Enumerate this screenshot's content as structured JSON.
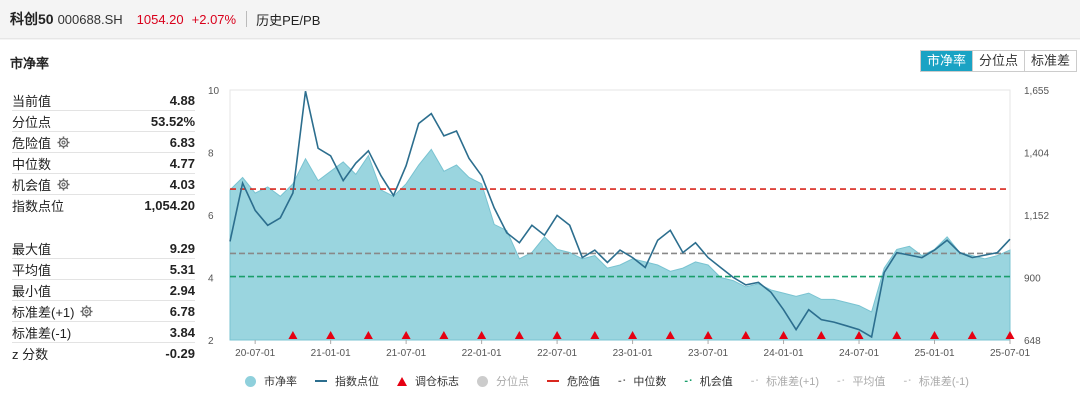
{
  "header": {
    "name": "科创50",
    "code": "000688.SH",
    "price": "1054.20",
    "change": "+2.07%",
    "history": "历史PE/PB"
  },
  "section_title": "市净率",
  "tabs": [
    "市净率",
    "分位点",
    "标准差"
  ],
  "stats_top": [
    {
      "label": "当前值",
      "value": "4.88",
      "gear": false
    },
    {
      "label": "分位点",
      "value": "53.52%",
      "gear": false
    },
    {
      "label": "危险值",
      "value": "6.83",
      "gear": true
    },
    {
      "label": "中位数",
      "value": "4.77",
      "gear": false
    },
    {
      "label": "机会值",
      "value": "4.03",
      "gear": true
    },
    {
      "label": "指数点位",
      "value": "1,054.20",
      "gear": false
    }
  ],
  "stats_bottom": [
    {
      "label": "最大值",
      "value": "9.29",
      "gear": false
    },
    {
      "label": "平均值",
      "value": "5.31",
      "gear": false
    },
    {
      "label": "最小值",
      "value": "2.94",
      "gear": false
    },
    {
      "label": "标准差(+1)",
      "value": "6.78",
      "gear": true
    },
    {
      "label": "标准差(-1)",
      "value": "3.84",
      "gear": false
    },
    {
      "label": "z 分数",
      "value": "-0.29",
      "gear": false
    }
  ],
  "legend": [
    {
      "label": "市净率",
      "kind": "dot",
      "color": "#8fd0dc",
      "dim": false
    },
    {
      "label": "指数点位",
      "kind": "line",
      "color": "#2c6e8e",
      "dim": false
    },
    {
      "label": "调仓标志",
      "kind": "tri",
      "color": "#e60012",
      "dim": false
    },
    {
      "label": "分位点",
      "kind": "dot",
      "color": "#cccccc",
      "dim": true
    },
    {
      "label": "危险值",
      "kind": "dash",
      "color": "#d9281f",
      "dim": false
    },
    {
      "label": "中位数",
      "kind": "dashdot",
      "color": "#777777",
      "dim": false
    },
    {
      "label": "机会值",
      "kind": "dashdot",
      "color": "#1a9e6b",
      "dim": false
    },
    {
      "label": "标准差(+1)",
      "kind": "dashdot",
      "color": "#cccccc",
      "dim": true
    },
    {
      "label": "平均值",
      "kind": "dashdot",
      "color": "#cccccc",
      "dim": true
    },
    {
      "label": "标准差(-1)",
      "kind": "dashdot",
      "color": "#cccccc",
      "dim": true
    }
  ],
  "chart_data": {
    "type": "area",
    "y_left": {
      "ticks": [
        "10",
        "8",
        "6",
        "4",
        "2"
      ],
      "range": [
        2,
        10
      ]
    },
    "y_right": {
      "ticks": [
        "1,655",
        "1,404",
        "1,152",
        "900",
        "648"
      ],
      "range": [
        648,
        1655
      ]
    },
    "x_tick_labels": [
      "20-07-01",
      "21-01-01",
      "21-07-01",
      "22-01-01",
      "22-07-01",
      "23-01-01",
      "23-07-01",
      "24-01-01",
      "24-07-01",
      "25-01-01",
      "25-07-01"
    ],
    "x_tick_index": [
      2,
      8,
      14,
      20,
      26,
      32,
      38,
      44,
      50,
      56,
      62
    ],
    "reference_lines": {
      "danger": 6.83,
      "median": 4.77,
      "opportunity": 4.03
    },
    "series": [
      {
        "name": "市净率",
        "axis": "left",
        "values": [
          6.8,
          7.2,
          6.7,
          6.9,
          6.6,
          7.0,
          7.8,
          7.1,
          7.4,
          7.7,
          7.3,
          7.9,
          6.8,
          6.6,
          7.0,
          7.6,
          8.1,
          7.4,
          7.6,
          7.2,
          7.0,
          5.7,
          5.5,
          4.6,
          4.8,
          5.3,
          4.9,
          4.8,
          4.6,
          4.7,
          4.3,
          4.4,
          4.6,
          4.5,
          4.4,
          4.2,
          4.3,
          4.5,
          4.4,
          4.0,
          3.9,
          3.7,
          3.8,
          3.6,
          3.5,
          3.4,
          3.5,
          3.3,
          3.3,
          3.2,
          3.1,
          2.9,
          4.3,
          4.9,
          5.0,
          4.7,
          4.9,
          5.3,
          4.8,
          4.7,
          4.6,
          4.7,
          4.88
        ]
      },
      {
        "name": "指数点位",
        "axis": "right",
        "values": [
          1045,
          1280,
          1170,
          1110,
          1140,
          1240,
          1650,
          1420,
          1390,
          1290,
          1360,
          1410,
          1310,
          1230,
          1350,
          1520,
          1560,
          1470,
          1490,
          1380,
          1310,
          1180,
          1080,
          1040,
          1110,
          1070,
          1150,
          1110,
          980,
          1010,
          960,
          1010,
          980,
          940,
          1050,
          1090,
          1000,
          1040,
          980,
          940,
          900,
          870,
          880,
          840,
          770,
          690,
          770,
          730,
          720,
          705,
          690,
          660,
          920,
          1000,
          990,
          980,
          1010,
          1050,
          1000,
          980,
          990,
          1000,
          1054
        ]
      }
    ],
    "rebalance_index": [
      5,
      8,
      11,
      14,
      17,
      20,
      23,
      26,
      29,
      32,
      35,
      38,
      41,
      44,
      47,
      50,
      53,
      56,
      59,
      62
    ]
  }
}
